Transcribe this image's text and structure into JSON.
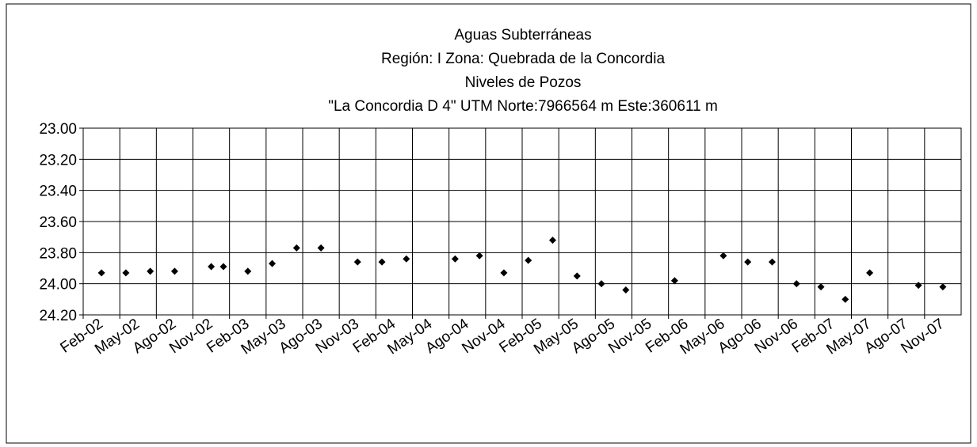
{
  "chart_data": {
    "type": "scatter",
    "title_lines": [
      "Aguas Subterráneas",
      "Región: I  Zona: Quebrada de la Concordia",
      "Niveles de Pozos",
      "\"La Concordia D 4\"  UTM Norte:7966564 m   Este:360611 m"
    ],
    "x": [
      "2002-03",
      "2002-05",
      "2002-07",
      "2002-09",
      "2002-12",
      "2003-01",
      "2003-03",
      "2003-05",
      "2003-07",
      "2003-09",
      "2003-12",
      "2004-02",
      "2004-04",
      "2004-08",
      "2004-10",
      "2004-12",
      "2005-02",
      "2005-04",
      "2005-06",
      "2005-08",
      "2005-10",
      "2006-02",
      "2006-06",
      "2006-08",
      "2006-10",
      "2006-12",
      "2007-02",
      "2007-04",
      "2007-06",
      "2007-10",
      "2007-12"
    ],
    "series": [
      {
        "color": "#000000",
        "values": [
          23.93,
          23.93,
          23.92,
          23.92,
          23.89,
          23.89,
          23.92,
          23.87,
          23.77,
          23.77,
          23.86,
          23.86,
          23.84,
          23.84,
          23.82,
          23.93,
          23.85,
          23.72,
          23.95,
          24.0,
          24.04,
          23.98,
          23.82,
          23.86,
          23.86,
          24.0,
          24.02,
          24.1,
          23.93,
          24.01,
          24.02
        ]
      }
    ],
    "xlim": [
      "2002-02",
      "2008-02"
    ],
    "xticks": [
      {
        "value": "2002-02",
        "label": "Feb-02"
      },
      {
        "value": "2002-05",
        "label": "May-02"
      },
      {
        "value": "2002-08",
        "label": "Ago-02"
      },
      {
        "value": "2002-11",
        "label": "Nov-02"
      },
      {
        "value": "2003-02",
        "label": "Feb-03"
      },
      {
        "value": "2003-05",
        "label": "May-03"
      },
      {
        "value": "2003-08",
        "label": "Ago-03"
      },
      {
        "value": "2003-11",
        "label": "Nov-03"
      },
      {
        "value": "2004-02",
        "label": "Feb-04"
      },
      {
        "value": "2004-05",
        "label": "May-04"
      },
      {
        "value": "2004-08",
        "label": "Ago-04"
      },
      {
        "value": "2004-11",
        "label": "Nov-04"
      },
      {
        "value": "2005-02",
        "label": "Feb-05"
      },
      {
        "value": "2005-05",
        "label": "May-05"
      },
      {
        "value": "2005-08",
        "label": "Ago-05"
      },
      {
        "value": "2005-11",
        "label": "Nov-05"
      },
      {
        "value": "2006-02",
        "label": "Feb-06"
      },
      {
        "value": "2006-05",
        "label": "May-06"
      },
      {
        "value": "2006-08",
        "label": "Ago-06"
      },
      {
        "value": "2006-11",
        "label": "Nov-06"
      },
      {
        "value": "2007-02",
        "label": "Feb-07"
      },
      {
        "value": "2007-05",
        "label": "May-07"
      },
      {
        "value": "2007-08",
        "label": "Ago-07"
      },
      {
        "value": "2007-11",
        "label": "Nov-07"
      }
    ],
    "ylim": [
      23.0,
      24.2
    ],
    "y_inverted": true,
    "yticks": [
      {
        "value": 23.0,
        "label": "23.00"
      },
      {
        "value": 23.2,
        "label": "23.20"
      },
      {
        "value": 23.4,
        "label": "23.40"
      },
      {
        "value": 23.6,
        "label": "23.60"
      },
      {
        "value": 23.8,
        "label": "23.80"
      },
      {
        "value": 24.0,
        "label": "24.00"
      },
      {
        "value": 24.2,
        "label": "24.20"
      }
    ],
    "grid": true
  }
}
